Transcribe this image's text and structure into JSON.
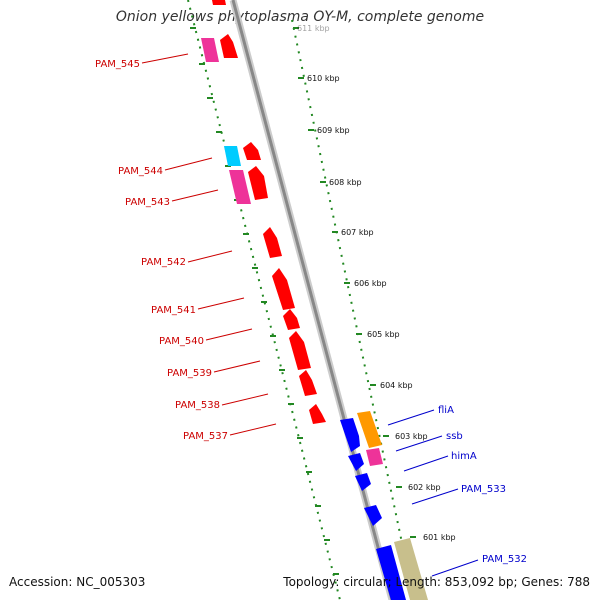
{
  "title": "Onion yellows phytoplasma OY-M, complete genome",
  "footer": {
    "accession": "Accession: NC_005303",
    "summary": "Topology: circular; Length: 853,092 bp; Genes: 788"
  },
  "colors": {
    "reverse_label": "#cc0000",
    "forward_label": "#0000cc",
    "backbone": "#888888",
    "tick": "#228822"
  },
  "ticks": [
    "611 kbp",
    "610 kbp",
    "609 kbp",
    "608 kbp",
    "607 kbp",
    "606 kbp",
    "605 kbp",
    "604 kbp",
    "603 kbp",
    "602 kbp",
    "601 kbp"
  ],
  "genes_reverse": [
    {
      "label": "PAM_545"
    },
    {
      "label": "PAM_544"
    },
    {
      "label": "PAM_543"
    },
    {
      "label": "PAM_542"
    },
    {
      "label": "PAM_541"
    },
    {
      "label": "PAM_540"
    },
    {
      "label": "PAM_539"
    },
    {
      "label": "PAM_538"
    },
    {
      "label": "PAM_537"
    }
  ],
  "genes_forward": [
    {
      "label": "fliA"
    },
    {
      "label": "ssb"
    },
    {
      "label": "himA"
    },
    {
      "label": "PAM_533"
    },
    {
      "label": "PAM_532"
    }
  ]
}
